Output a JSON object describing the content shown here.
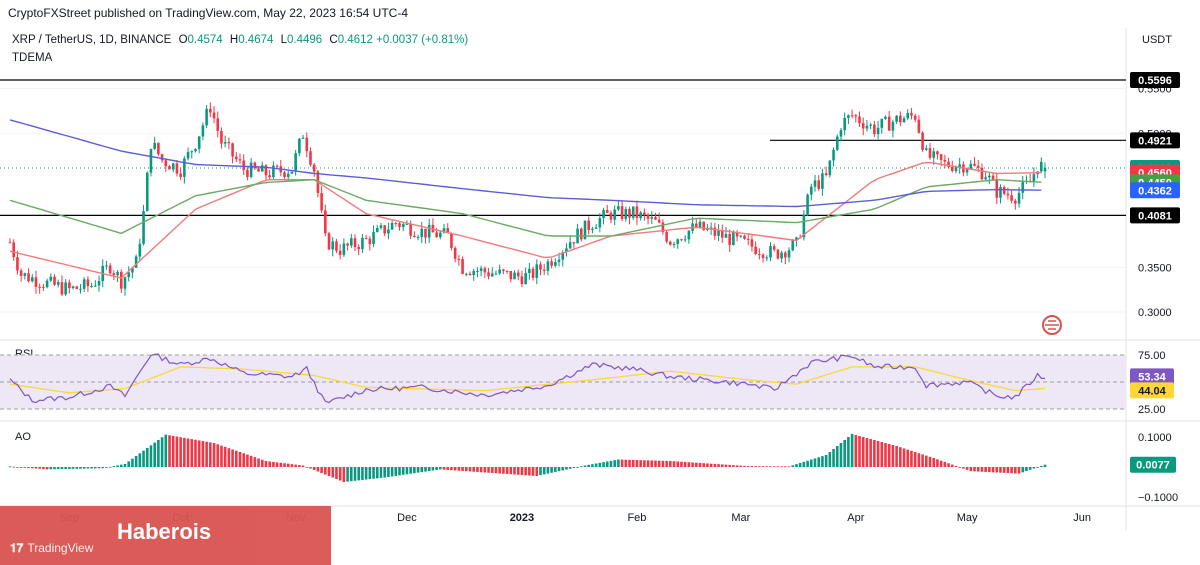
{
  "header": {
    "publish_line": "CryptoFXStreet published on TradingView.com, May 22, 2023 16:54 UTC-4"
  },
  "symbol": {
    "name": "XRP / TetherUS, 1D, BINANCE",
    "o_label": "O",
    "o": "0.4574",
    "h_label": "H",
    "h": "0.4674",
    "l_label": "L",
    "l": "0.4496",
    "c_label": "C",
    "c": "0.4612",
    "change": "+0.0037 (+0.81%)"
  },
  "indicator_label": "TDEMA",
  "price_unit": "USDT",
  "price_badges": [
    {
      "value": "0.5596",
      "bg": "#000000",
      "fg": "#ffffff",
      "price": 0.5596
    },
    {
      "value": "0.4921",
      "bg": "#000000",
      "fg": "#ffffff",
      "price": 0.4921
    },
    {
      "value": "0.4612",
      "bg": "#089981",
      "fg": "#ffffff",
      "price": 0.4612
    },
    {
      "value": "0.4560",
      "bg": "#f23645",
      "fg": "#ffffff",
      "price": 0.456
    },
    {
      "value": "0.4450",
      "bg": "#43a047",
      "fg": "#ffffff",
      "price": 0.445
    },
    {
      "value": "0.4362",
      "bg": "#2962ff",
      "fg": "#ffffff",
      "price": 0.4362
    },
    {
      "value": "0.4081",
      "bg": "#000000",
      "fg": "#ffffff",
      "price": 0.4081
    }
  ],
  "rsi": {
    "label": "RSI",
    "ticks": [
      "75.00",
      "25.00"
    ],
    "badges": [
      {
        "value": "53.34",
        "bg": "#7e57c2",
        "fg": "#ffffff",
        "level": 53.34
      },
      {
        "value": "44.04",
        "bg": "#fdd835",
        "fg": "#131722",
        "level": 44.04
      }
    ]
  },
  "ao": {
    "label": "AO",
    "ticks": [
      "0.1000",
      "−0.1000"
    ],
    "badge": {
      "value": "0.0077",
      "bg": "#089981",
      "fg": "#ffffff",
      "level": 0.0077
    }
  },
  "x_labels": [
    {
      "text": "Sep",
      "bold": false
    },
    {
      "text": "Oct",
      "bold": false
    },
    {
      "text": "Nov",
      "bold": false
    },
    {
      "text": "Dec",
      "bold": false
    },
    {
      "text": "2023",
      "bold": true
    },
    {
      "text": "Feb",
      "bold": false
    },
    {
      "text": "Mar",
      "bold": false
    },
    {
      "text": "Apr",
      "bold": false
    },
    {
      "text": "May",
      "bold": false
    },
    {
      "text": "Jun",
      "bold": false
    }
  ],
  "watermark": {
    "brand": "Haberois",
    "tv_text": "TradingView"
  },
  "colors": {
    "up": "#089981",
    "down": "#f23645",
    "ema_fast": "#f07b7b",
    "ema_mid": "#6aaa64",
    "ema_slow": "#5b5fd6",
    "rsi_line": "#7e57c2",
    "rsi_ma": "#fdd835",
    "rsi_band": "#ede7f6"
  },
  "chart_data": {
    "type": "candlestick",
    "title": "XRP / TetherUS, 1D, BINANCE",
    "ylabel": "USDT",
    "ylim": [
      0.28,
      0.58
    ],
    "y_ticks": [
      0.3,
      0.35,
      0.5,
      0.55
    ],
    "horizontal_levels": [
      0.5596,
      0.4921,
      0.4081
    ],
    "ohlc_last": {
      "open": 0.4574,
      "high": 0.4674,
      "low": 0.4496,
      "close": 0.4612
    },
    "close_path": [
      [
        "2022-08-16",
        0.378
      ],
      [
        "2022-08-19",
        0.342
      ],
      [
        "2022-08-26",
        0.332
      ],
      [
        "2022-09-01",
        0.325
      ],
      [
        "2022-09-07",
        0.33
      ],
      [
        "2022-09-12",
        0.352
      ],
      [
        "2022-09-15",
        0.335
      ],
      [
        "2022-09-19",
        0.355
      ],
      [
        "2022-09-21",
        0.41
      ],
      [
        "2022-09-23",
        0.49
      ],
      [
        "2022-09-26",
        0.47
      ],
      [
        "2022-10-01",
        0.46
      ],
      [
        "2022-10-05",
        0.49
      ],
      [
        "2022-10-09",
        0.53
      ],
      [
        "2022-10-12",
        0.49
      ],
      [
        "2022-10-18",
        0.46
      ],
      [
        "2022-10-24",
        0.455
      ],
      [
        "2022-10-31",
        0.46
      ],
      [
        "2022-11-03",
        0.5
      ],
      [
        "2022-11-06",
        0.46
      ],
      [
        "2022-11-09",
        0.38
      ],
      [
        "2022-11-13",
        0.37
      ],
      [
        "2022-11-20",
        0.38
      ],
      [
        "2022-11-28",
        0.4
      ],
      [
        "2022-12-05",
        0.39
      ],
      [
        "2022-12-12",
        0.385
      ],
      [
        "2022-12-16",
        0.35
      ],
      [
        "2022-12-22",
        0.345
      ],
      [
        "2022-12-30",
        0.34
      ],
      [
        "2023-01-03",
        0.34
      ],
      [
        "2023-01-08",
        0.355
      ],
      [
        "2023-01-14",
        0.38
      ],
      [
        "2023-01-20",
        0.4
      ],
      [
        "2023-01-25",
        0.41
      ],
      [
        "2023-01-31",
        0.41
      ],
      [
        "2023-02-06",
        0.4
      ],
      [
        "2023-02-10",
        0.38
      ],
      [
        "2023-02-17",
        0.395
      ],
      [
        "2023-02-24",
        0.385
      ],
      [
        "2023-03-03",
        0.375
      ],
      [
        "2023-03-10",
        0.365
      ],
      [
        "2023-03-16",
        0.375
      ],
      [
        "2023-03-20",
        0.44
      ],
      [
        "2023-03-24",
        0.45
      ],
      [
        "2023-03-28",
        0.51
      ],
      [
        "2023-03-31",
        0.52
      ],
      [
        "2023-04-06",
        0.505
      ],
      [
        "2023-04-12",
        0.515
      ],
      [
        "2023-04-17",
        0.52
      ],
      [
        "2023-04-20",
        0.475
      ],
      [
        "2023-04-25",
        0.465
      ],
      [
        "2023-05-01",
        0.465
      ],
      [
        "2023-05-06",
        0.455
      ],
      [
        "2023-05-09",
        0.435
      ],
      [
        "2023-05-14",
        0.43
      ],
      [
        "2023-05-18",
        0.445
      ],
      [
        "2023-05-20",
        0.465
      ],
      [
        "2023-05-22",
        0.4612
      ]
    ],
    "series": [
      {
        "name": "TDEMA",
        "values": [
          [
            "2022-08-16",
            0.368
          ],
          [
            "2022-09-15",
            0.338
          ],
          [
            "2022-10-05",
            0.415
          ],
          [
            "2022-10-24",
            0.448
          ],
          [
            "2022-11-06",
            0.448
          ],
          [
            "2022-11-20",
            0.41
          ],
          [
            "2022-12-16",
            0.385
          ],
          [
            "2023-01-08",
            0.36
          ],
          [
            "2023-01-25",
            0.385
          ],
          [
            "2023-02-17",
            0.395
          ],
          [
            "2023-03-16",
            0.38
          ],
          [
            "2023-04-06",
            0.448
          ],
          [
            "2023-04-20",
            0.468
          ],
          [
            "2023-05-09",
            0.455
          ],
          [
            "2023-05-22",
            0.456
          ]
        ]
      },
      {
        "name": "TDEMA",
        "values": [
          [
            "2022-08-16",
            0.425
          ],
          [
            "2022-09-15",
            0.388
          ],
          [
            "2022-10-05",
            0.43
          ],
          [
            "2022-10-24",
            0.445
          ],
          [
            "2022-11-06",
            0.448
          ],
          [
            "2022-11-20",
            0.425
          ],
          [
            "2022-12-16",
            0.41
          ],
          [
            "2023-01-08",
            0.385
          ],
          [
            "2023-01-25",
            0.385
          ],
          [
            "2023-02-17",
            0.405
          ],
          [
            "2023-03-16",
            0.4
          ],
          [
            "2023-04-06",
            0.415
          ],
          [
            "2023-04-20",
            0.44
          ],
          [
            "2023-05-09",
            0.448
          ],
          [
            "2023-05-22",
            0.445
          ]
        ]
      },
      {
        "name": "TDEMA",
        "values": [
          [
            "2022-08-16",
            0.515
          ],
          [
            "2022-09-15",
            0.48
          ],
          [
            "2022-10-05",
            0.465
          ],
          [
            "2022-10-24",
            0.462
          ],
          [
            "2022-11-06",
            0.455
          ],
          [
            "2022-11-20",
            0.45
          ],
          [
            "2022-12-16",
            0.438
          ],
          [
            "2023-01-08",
            0.428
          ],
          [
            "2023-01-25",
            0.425
          ],
          [
            "2023-02-17",
            0.42
          ],
          [
            "2023-03-16",
            0.418
          ],
          [
            "2023-04-06",
            0.425
          ],
          [
            "2023-04-20",
            0.435
          ],
          [
            "2023-05-09",
            0.437
          ],
          [
            "2023-05-22",
            0.4362
          ]
        ]
      }
    ],
    "rsi_path": [
      [
        "2022-08-16",
        52
      ],
      [
        "2022-08-22",
        33
      ],
      [
        "2022-09-01",
        36
      ],
      [
        "2022-09-12",
        46
      ],
      [
        "2022-09-16",
        37
      ],
      [
        "2022-09-23",
        76
      ],
      [
        "2022-10-01",
        66
      ],
      [
        "2022-10-09",
        72
      ],
      [
        "2022-10-18",
        58
      ],
      [
        "2022-10-31",
        55
      ],
      [
        "2022-11-04",
        62
      ],
      [
        "2022-11-09",
        30
      ],
      [
        "2022-11-20",
        43
      ],
      [
        "2022-12-05",
        45
      ],
      [
        "2022-12-22",
        38
      ],
      [
        "2023-01-08",
        47
      ],
      [
        "2023-01-20",
        66
      ],
      [
        "2023-01-31",
        62
      ],
      [
        "2023-02-10",
        55
      ],
      [
        "2023-03-03",
        48
      ],
      [
        "2023-03-10",
        43
      ],
      [
        "2023-03-20",
        68
      ],
      [
        "2023-03-31",
        74
      ],
      [
        "2023-04-06",
        64
      ],
      [
        "2023-04-17",
        64
      ],
      [
        "2023-04-20",
        47
      ],
      [
        "2023-05-01",
        50
      ],
      [
        "2023-05-09",
        37
      ],
      [
        "2023-05-14",
        36
      ],
      [
        "2023-05-20",
        56
      ],
      [
        "2023-05-22",
        53.34
      ]
    ],
    "rsi_ma_path": [
      [
        "2022-08-16",
        48
      ],
      [
        "2022-09-01",
        40
      ],
      [
        "2022-09-16",
        44
      ],
      [
        "2022-10-01",
        64
      ],
      [
        "2022-10-18",
        62
      ],
      [
        "2022-11-06",
        56
      ],
      [
        "2022-11-20",
        45
      ],
      [
        "2022-12-22",
        42
      ],
      [
        "2023-01-20",
        52
      ],
      [
        "2023-02-10",
        60
      ],
      [
        "2023-03-03",
        52
      ],
      [
        "2023-03-16",
        48
      ],
      [
        "2023-03-31",
        64
      ],
      [
        "2023-04-17",
        64
      ],
      [
        "2023-05-01",
        52
      ],
      [
        "2023-05-14",
        42
      ],
      [
        "2023-05-22",
        44.04
      ]
    ],
    "ao_path": [
      [
        "2022-08-16",
        0.002
      ],
      [
        "2022-08-26",
        -0.008
      ],
      [
        "2022-09-10",
        -0.004
      ],
      [
        "2022-09-16",
        0.01
      ],
      [
        "2022-09-27",
        0.108
      ],
      [
        "2022-10-10",
        0.08
      ],
      [
        "2022-10-24",
        0.02
      ],
      [
        "2022-11-03",
        0.005
      ],
      [
        "2022-11-14",
        -0.05
      ],
      [
        "2022-11-25",
        -0.035
      ],
      [
        "2022-12-10",
        -0.008
      ],
      [
        "2022-12-24",
        -0.02
      ],
      [
        "2023-01-05",
        -0.03
      ],
      [
        "2023-01-18",
        0.005
      ],
      [
        "2023-01-27",
        0.025
      ],
      [
        "2023-02-10",
        0.02
      ],
      [
        "2023-03-03",
        0.003
      ],
      [
        "2023-03-14",
        0.002
      ],
      [
        "2023-03-24",
        0.04
      ],
      [
        "2023-03-31",
        0.11
      ],
      [
        "2023-04-12",
        0.07
      ],
      [
        "2023-04-22",
        0.03
      ],
      [
        "2023-05-02",
        -0.014
      ],
      [
        "2023-05-15",
        -0.022
      ],
      [
        "2023-05-22",
        0.0077
      ]
    ],
    "rsi_ylim": [
      20,
      80
    ],
    "ao_ylim": [
      -0.11,
      0.12
    ]
  }
}
